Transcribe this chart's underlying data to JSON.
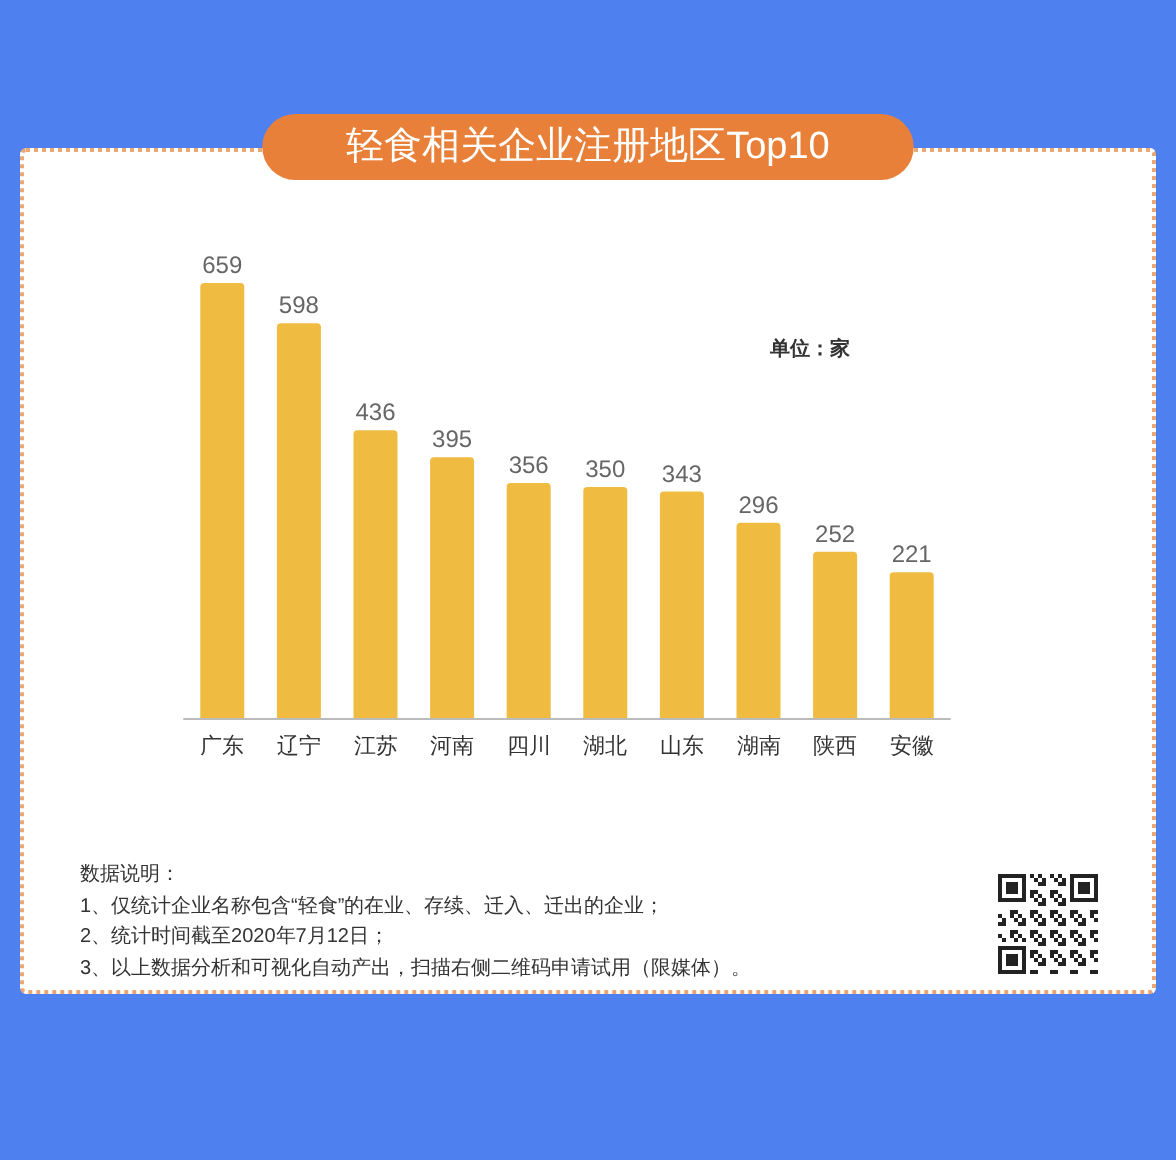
{
  "chart_data": {
    "type": "bar",
    "title": "轻食相关企业注册地区Top10",
    "categories": [
      "广东",
      "辽宁",
      "江苏",
      "河南",
      "四川",
      "湖北",
      "山东",
      "湖南",
      "陕西",
      "安徽"
    ],
    "values": [
      659,
      598,
      436,
      395,
      356,
      350,
      343,
      296,
      252,
      221
    ],
    "color": "#f0bb41",
    "data_labels": true,
    "annotations": [
      "单位：家",
      "数据说明：",
      "1、仅统计企业名称包含“轻食”的在业、存续、迁入、迁出的企业；",
      "2、统计时间截至2020年7月12日；",
      "3、以上数据分析和可视化自动产出，扫描右侧二维码申请试用（限媒体）。"
    ]
  }
}
